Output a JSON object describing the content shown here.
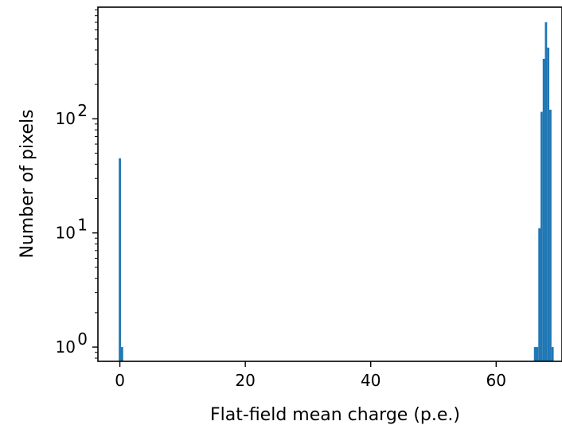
{
  "chart_data": {
    "type": "bar",
    "subtype": "histogram",
    "xlabel": "Flat-field mean charge (p.e.)",
    "ylabel": "Number of pixels",
    "yscale": "log",
    "xlim": [
      -3.5,
      70.5
    ],
    "ylim": [
      0.75,
      950
    ],
    "grid": false,
    "legend": "none",
    "bar_color": "#1f77b4",
    "bin_width": 0.35,
    "xticks": [
      {
        "value": 0,
        "label": "0"
      },
      {
        "value": 20,
        "label": "20"
      },
      {
        "value": 40,
        "label": "40"
      },
      {
        "value": 60,
        "label": "60"
      }
    ],
    "yticks": [
      {
        "value": 1,
        "base": "10",
        "exp": "0"
      },
      {
        "value": 10,
        "base": "10",
        "exp": "1"
      },
      {
        "value": 100,
        "base": "10",
        "exp": "2"
      }
    ],
    "bins": [
      {
        "x": 0.0,
        "count": 45
      },
      {
        "x": 0.35,
        "count": 1
      },
      {
        "x": 66.2,
        "count": 1
      },
      {
        "x": 66.55,
        "count": 1
      },
      {
        "x": 66.9,
        "count": 11
      },
      {
        "x": 67.25,
        "count": 115
      },
      {
        "x": 67.6,
        "count": 335
      },
      {
        "x": 67.95,
        "count": 700
      },
      {
        "x": 68.3,
        "count": 420
      },
      {
        "x": 68.65,
        "count": 120
      },
      {
        "x": 69.0,
        "count": 1
      }
    ]
  }
}
